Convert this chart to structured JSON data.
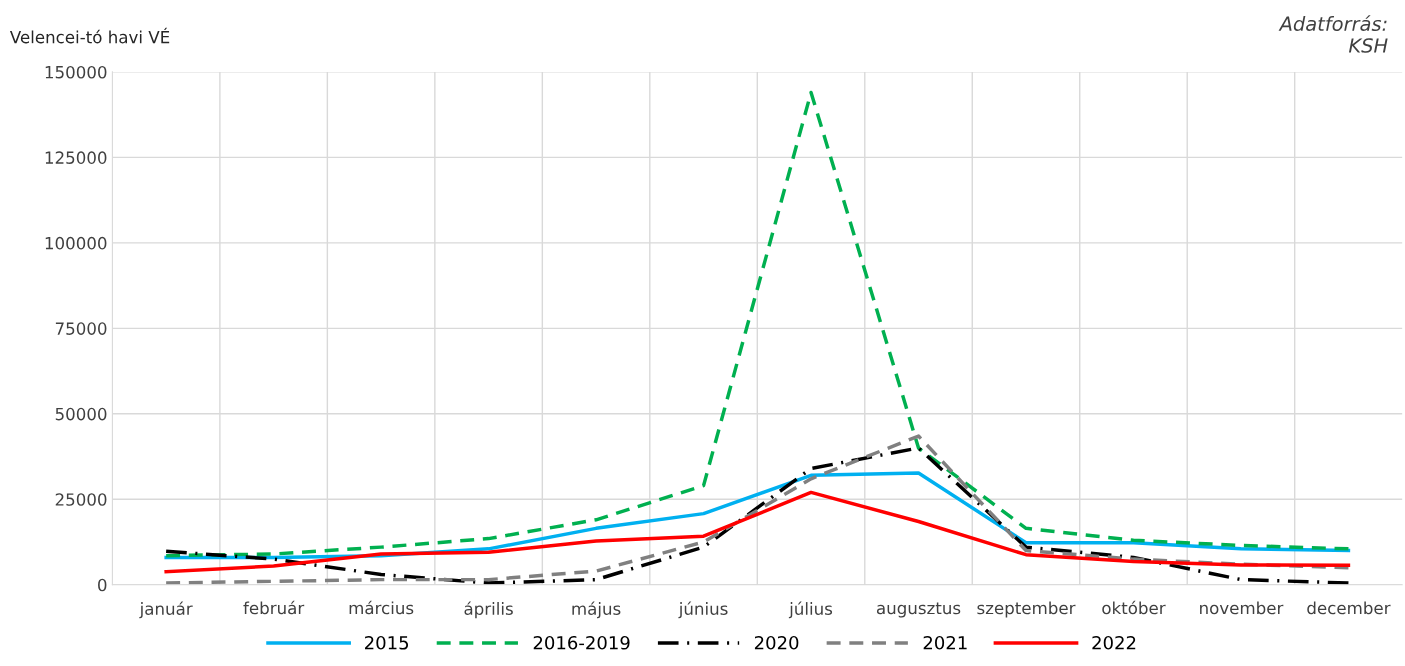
{
  "chart_data": {
    "type": "line",
    "ylabel": "Velencei-tó havi VÉ",
    "annotations": [
      "Adatforrás:\nKSH"
    ],
    "categories": [
      "január",
      "február",
      "március",
      "április",
      "május",
      "június",
      "július",
      "augusztus",
      "szeptember",
      "október",
      "november",
      "december"
    ],
    "series": [
      {
        "name": "2015",
        "color": "#00b0f0",
        "line_style": "solid",
        "values": [
          8000,
          8000,
          8500,
          10500,
          16500,
          20800,
          32000,
          32700,
          12300,
          12300,
          10500,
          10000
        ]
      },
      {
        "name": "2016-2019",
        "color": "#00b050",
        "line_style": "dashed",
        "values": [
          8500,
          9000,
          11000,
          13500,
          19000,
          29000,
          144000,
          40000,
          16500,
          13000,
          11500,
          10500
        ]
      },
      {
        "name": "2020",
        "color": "#000000",
        "line_style": "dashdot",
        "values": [
          9800,
          7500,
          3000,
          500,
          1500,
          11000,
          34000,
          40000,
          11000,
          8000,
          1500,
          500
        ]
      },
      {
        "name": "2021",
        "color": "#808080",
        "line_style": "dashed",
        "values": [
          500,
          1000,
          1500,
          1500,
          4000,
          12500,
          31000,
          43500,
          10000,
          7500,
          6000,
          5000
        ]
      },
      {
        "name": "2022",
        "color": "#ff0000",
        "line_style": "solid",
        "values": [
          3800,
          5500,
          9000,
          9500,
          12800,
          14200,
          27000,
          18500,
          8800,
          6800,
          5800,
          5700
        ]
      }
    ],
    "ylim": [
      0,
      150000
    ],
    "yticks": [
      0,
      25000,
      50000,
      75000,
      100000,
      125000,
      150000
    ],
    "grid": true,
    "legend": "bottom",
    "marker": "none"
  }
}
